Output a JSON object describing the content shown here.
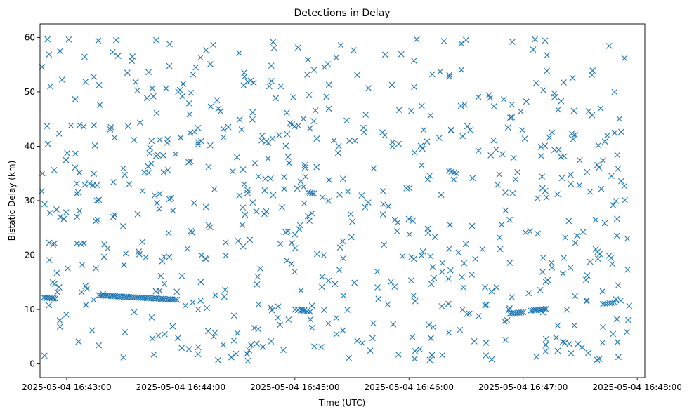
{
  "chart_data": {
    "type": "scatter",
    "title": "Detections in Delay",
    "xlabel": "Time (UTC)",
    "ylabel": "Bistatic Delay (km)",
    "marker": "x",
    "color": "#1f77b4",
    "x_start": "2025-05-04 16:42:46",
    "x_end": "2025-05-04 16:48:00",
    "xlim": [
      "2025-05-04 16:42:46",
      "2025-05-04 16:48:04"
    ],
    "ylim": [
      -2.5,
      62.5
    ],
    "x_ticks": [
      "2025-05-04 16:43:00",
      "2025-05-04 16:44:00",
      "2025-05-04 16:45:00",
      "2025-05-04 16:46:00",
      "2025-05-04 16:47:00",
      "2025-05-04 16:48:00"
    ],
    "y_ticks": [
      0,
      10,
      20,
      30,
      40,
      50,
      60
    ],
    "grid": false,
    "noise_points": 700,
    "tracks": [
      {
        "t0": "2025-05-04 16:42:48",
        "t1": "2025-05-04 16:42:54",
        "y0": 12.2,
        "y1": 12.0,
        "n": 8
      },
      {
        "t0": "2025-05-04 16:43:17",
        "t1": "2025-05-04 16:43:58",
        "y0": 12.6,
        "y1": 11.8,
        "n": 45
      },
      {
        "t0": "2025-05-04 16:46:53",
        "t1": "2025-05-04 16:47:00",
        "y0": 9.2,
        "y1": 9.5,
        "n": 8
      },
      {
        "t0": "2025-05-04 16:47:04",
        "t1": "2025-05-04 16:47:12",
        "y0": 9.8,
        "y1": 10.1,
        "n": 10
      },
      {
        "t0": "2025-05-04 16:47:42",
        "t1": "2025-05-04 16:47:48",
        "y0": 11.0,
        "y1": 11.3,
        "n": 6
      },
      {
        "t0": "2025-05-04 16:45:00",
        "t1": "2025-05-04 16:45:08",
        "y0": 10.0,
        "y1": 9.6,
        "n": 6
      },
      {
        "t0": "2025-05-04 16:46:21",
        "t1": "2025-05-04 16:46:25",
        "y0": 35.5,
        "y1": 35.0,
        "n": 4
      },
      {
        "t0": "2025-05-04 16:45:07",
        "t1": "2025-05-04 16:45:10",
        "y0": 31.5,
        "y1": 31.3,
        "n": 4
      }
    ]
  }
}
